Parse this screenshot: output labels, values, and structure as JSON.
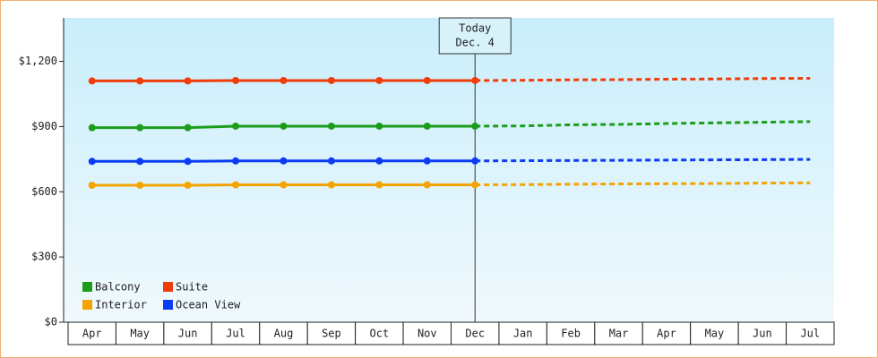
{
  "chart_data": {
    "type": "line",
    "categories": [
      "Apr",
      "May",
      "Jun",
      "Jul",
      "Aug",
      "Sep",
      "Oct",
      "Nov",
      "Dec",
      "Jan",
      "Feb",
      "Mar",
      "Apr",
      "May",
      "Jun",
      "Jul"
    ],
    "series": [
      {
        "name": "Balcony",
        "color": "#1a9e1a",
        "values": [
          895,
          895,
          895,
          902,
          902,
          902,
          902,
          902,
          902,
          null,
          null,
          null,
          null,
          null,
          null,
          null
        ],
        "forecast": [
          null,
          null,
          null,
          null,
          null,
          null,
          null,
          null,
          902,
          903,
          908,
          910,
          914,
          917,
          920,
          923
        ]
      },
      {
        "name": "Suite",
        "color": "#f03c0a",
        "values": [
          1110,
          1110,
          1110,
          1112,
          1112,
          1112,
          1112,
          1112,
          1112,
          null,
          null,
          null,
          null,
          null,
          null,
          null
        ],
        "forecast": [
          null,
          null,
          null,
          null,
          null,
          null,
          null,
          null,
          1112,
          1113,
          1115,
          1116,
          1118,
          1119,
          1121,
          1122
        ]
      },
      {
        "name": "Interior",
        "color": "#f5a300",
        "values": [
          630,
          630,
          630,
          632,
          632,
          632,
          632,
          632,
          632,
          null,
          null,
          null,
          null,
          null,
          null,
          null
        ],
        "forecast": [
          null,
          null,
          null,
          null,
          null,
          null,
          null,
          null,
          632,
          633,
          635,
          636,
          637,
          638,
          640,
          641
        ]
      },
      {
        "name": "Ocean View",
        "color": "#0a3cf5",
        "values": [
          740,
          740,
          740,
          742,
          742,
          742,
          742,
          742,
          742,
          null,
          null,
          null,
          null,
          null,
          null,
          null
        ],
        "forecast": [
          null,
          null,
          null,
          null,
          null,
          null,
          null,
          null,
          742,
          743,
          744,
          745,
          746,
          747,
          748,
          749
        ]
      }
    ],
    "annotation": [
      "Today",
      "Dec. 4"
    ],
    "ylim": [
      0,
      1400
    ],
    "yticks": [
      {
        "value": 0,
        "label": "$0"
      },
      {
        "value": 300,
        "label": "$300"
      },
      {
        "value": 600,
        "label": "$600"
      },
      {
        "value": 900,
        "label": "$900"
      },
      {
        "value": 1200,
        "label": "$1,200"
      }
    ],
    "grid": false,
    "legend": "bottom-left"
  }
}
